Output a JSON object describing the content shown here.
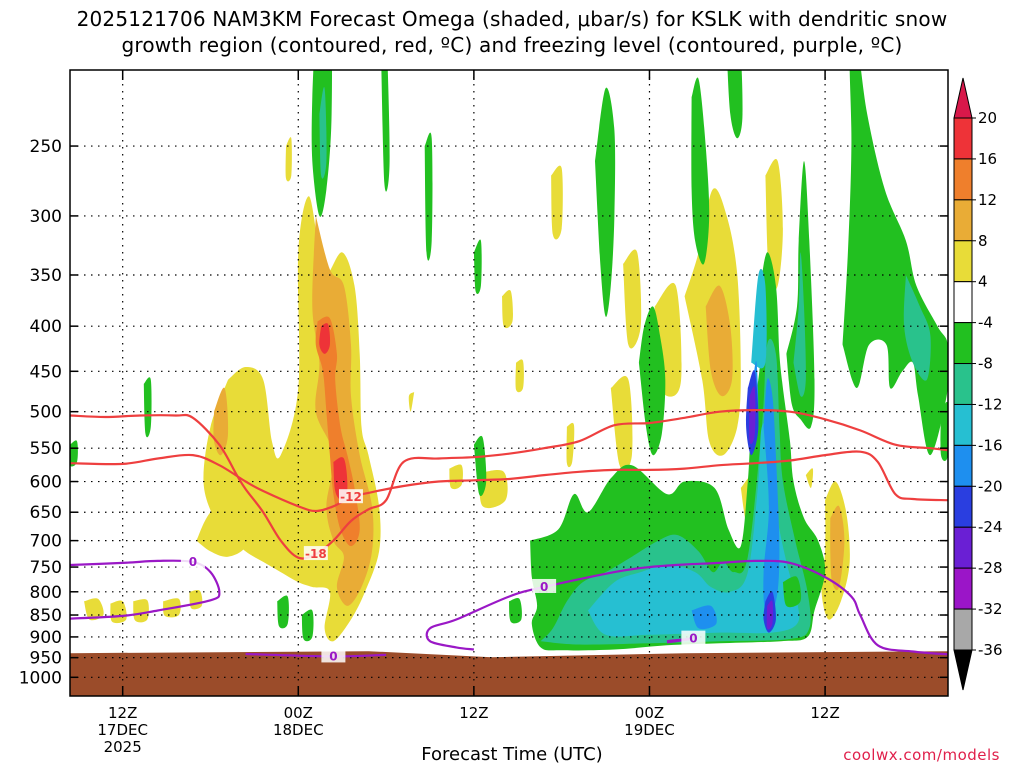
{
  "header": {
    "title_line1": "2025121706 NAM3KM Forecast Omega (shaded, μbar/s) for KSLK with dendritic snow",
    "title_line2": "growth region (contoured, red, ºC) and freezing level (contoured, purple, ºC)"
  },
  "footer": {
    "credit": "coolwx.com/models"
  },
  "chart_data": {
    "type": "heatmap",
    "title": "2025121706 NAM3KM Forecast Omega (shaded, μbar/s) for KSLK with dendritic snow growth region (contoured, red, ºC) and freezing level (contoured, purple, ºC)",
    "xlabel": "Forecast Time (UTC)",
    "ylabel": "",
    "y_scale": "log-pressure",
    "y_ticks": [
      250,
      300,
      350,
      400,
      450,
      500,
      550,
      600,
      650,
      700,
      750,
      800,
      850,
      900,
      950,
      1000
    ],
    "ylim": [
      1050,
      205
    ],
    "x_range_hours": [
      3,
      53
    ],
    "x_ticks": [
      {
        "hour": 6,
        "labels": [
          "12Z",
          "17DEC",
          "2025"
        ]
      },
      {
        "hour": 16,
        "labels": [
          "00Z",
          "18DEC"
        ]
      },
      {
        "hour": 26,
        "labels": [
          "12Z"
        ]
      },
      {
        "hour": 36,
        "labels": [
          "00Z",
          "19DEC"
        ]
      },
      {
        "hour": 46,
        "labels": [
          "12Z"
        ]
      }
    ],
    "grid": true,
    "colorbar": {
      "levels": [
        20,
        16,
        12,
        8,
        4,
        -4,
        -8,
        -12,
        -16,
        -20,
        -24,
        -28,
        -32,
        -36
      ],
      "colors": [
        "#d8184a",
        "#ee3338",
        "#ef7f2c",
        "#e9ac36",
        "#e8dc38",
        "#ffffff",
        "#22c020",
        "#29c28c",
        "#26bfd2",
        "#1e8fef",
        "#2a3ee0",
        "#6a1fd4",
        "#9b15c8",
        "#a8a8a8",
        "#000000"
      ]
    },
    "terrain_pressure_hpa": 944,
    "contours": {
      "dgz_red": [
        {
          "label": "-12",
          "points": [
            [
              3,
              572
            ],
            [
              6,
              573
            ],
            [
              8,
              565
            ],
            [
              10,
              560
            ],
            [
              11.5,
              575
            ],
            [
              13,
              600
            ],
            [
              14,
              615
            ],
            [
              16,
              640
            ],
            [
              17,
              648
            ],
            [
              18,
              640
            ],
            [
              19,
              625
            ],
            [
              20,
              618
            ],
            [
              22,
              607
            ],
            [
              24,
              600
            ],
            [
              26,
              598
            ],
            [
              28,
              596
            ],
            [
              30,
              590
            ],
            [
              32,
              585
            ],
            [
              34,
              582
            ],
            [
              36,
              582
            ],
            [
              38,
              580
            ],
            [
              40,
              575
            ],
            [
              42,
              572
            ],
            [
              44,
              568
            ],
            [
              46,
              560
            ],
            [
              48,
              555
            ],
            [
              49,
              570
            ],
            [
              50,
              620
            ],
            [
              51,
              628
            ],
            [
              53,
              630
            ]
          ]
        },
        {
          "label": "-18",
          "points": [
            [
              3,
              505
            ],
            [
              5,
              507
            ],
            [
              7,
              505
            ],
            [
              9,
              505
            ],
            [
              10,
              508
            ],
            [
              11.5,
              545
            ],
            [
              12.5,
              590
            ],
            [
              13,
              612
            ],
            [
              14,
              650
            ],
            [
              15,
              700
            ],
            [
              16,
              732
            ],
            [
              17,
              725
            ],
            [
              18,
              700
            ],
            [
              19,
              665
            ],
            [
              20,
              645
            ],
            [
              21,
              630
            ],
            [
              22,
              570
            ],
            [
              24,
              565
            ],
            [
              26,
              563
            ],
            [
              28,
              558
            ],
            [
              30,
              550
            ],
            [
              32,
              540
            ],
            [
              34,
              518
            ],
            [
              36,
              515
            ],
            [
              38,
              508
            ],
            [
              40,
              500
            ],
            [
              42,
              498
            ],
            [
              44,
              500
            ],
            [
              46,
              510
            ],
            [
              48,
              525
            ],
            [
              50,
              545
            ],
            [
              52,
              550
            ],
            [
              53,
              553
            ]
          ]
        }
      ],
      "freezing_purple": [
        {
          "label": "0",
          "points": [
            [
              3,
              746
            ],
            [
              6,
              742
            ],
            [
              8,
              738
            ],
            [
              10,
              740
            ],
            [
              11,
              760
            ],
            [
              11.5,
              800
            ],
            [
              11,
              818
            ],
            [
              8,
              840
            ],
            [
              6,
              852
            ],
            [
              3,
              858
            ]
          ]
        },
        {
          "label": "0",
          "points": [
            [
              13,
              941
            ],
            [
              18,
              947
            ],
            [
              21,
              943
            ]
          ]
        },
        {
          "label": "0",
          "points": [
            [
              26,
              930
            ],
            [
              25,
              925
            ],
            [
              23.5,
              910
            ],
            [
              23.5,
              880
            ],
            [
              25,
              860
            ],
            [
              28,
              810
            ],
            [
              30,
              790
            ],
            [
              34,
              760
            ],
            [
              36,
              750
            ],
            [
              38,
              745
            ],
            [
              40,
              742
            ],
            [
              42,
              738
            ],
            [
              44,
              742
            ],
            [
              46,
              770
            ],
            [
              47.5,
              810
            ],
            [
              48,
              850
            ],
            [
              49,
              920
            ],
            [
              51,
              935
            ],
            [
              53,
              942
            ]
          ]
        },
        {
          "label": "0",
          "points": [
            [
              37,
              910
            ],
            [
              38.5,
              904
            ],
            [
              37,
              913
            ]
          ]
        }
      ]
    },
    "features": [
      {
        "name": "ascent-maximum-near-600hPa",
        "hour": 18.3,
        "pressure_hpa": 600,
        "omega": 20
      },
      {
        "name": "ascent-maximum-near-410hPa",
        "hour": 17.5,
        "pressure_hpa": 410,
        "omega": 20
      },
      {
        "name": "subsidence-maximum-near-500hPa",
        "hour": 41.8,
        "pressure_hpa": 500,
        "omega": -28
      },
      {
        "name": "subsidence-maximum-near-860hPa",
        "hour": 42.8,
        "pressure_hpa": 860,
        "omega": -28
      }
    ]
  }
}
